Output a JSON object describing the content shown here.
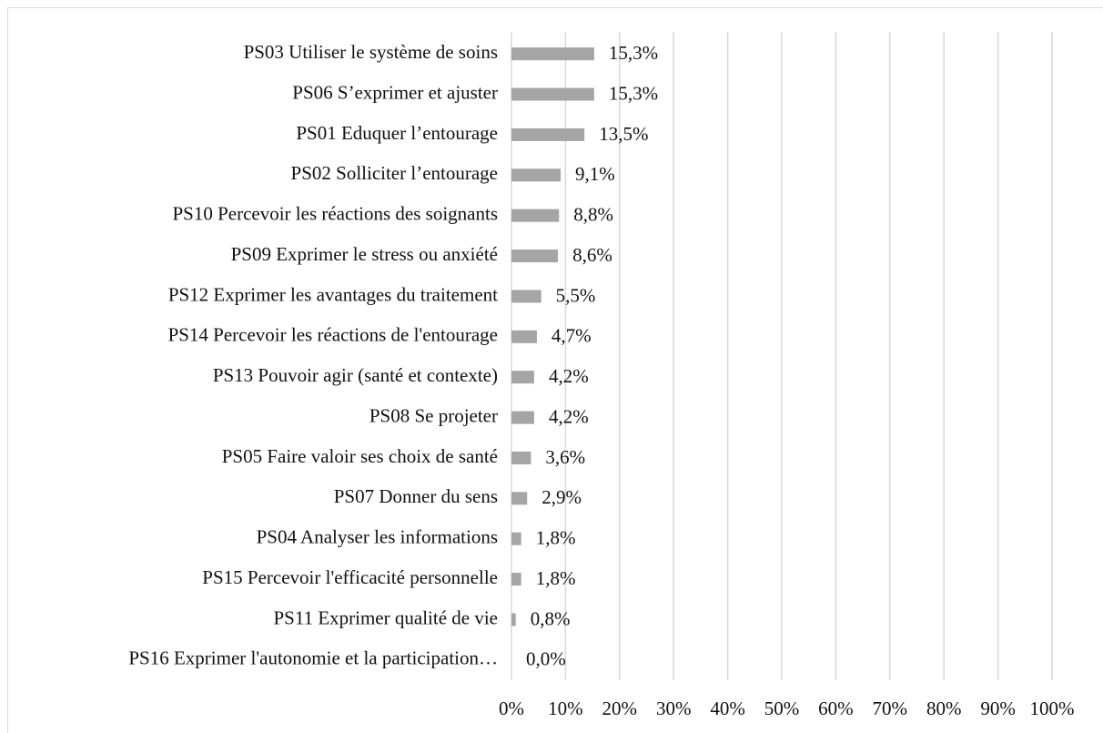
{
  "chart_data": {
    "type": "bar",
    "orientation": "horizontal",
    "categories": [
      "PS03 Utiliser le système de soins",
      "PS06 S’exprimer et ajuster",
      "PS01 Eduquer l’entourage",
      "PS02 Solliciter l’entourage",
      "PS10 Percevoir les réactions des soignants",
      "PS09 Exprimer le stress ou anxiété",
      "PS12 Exprimer les avantages du traitement",
      "PS14 Percevoir les réactions de l'entourage",
      "PS13 Pouvoir agir (santé et contexte)",
      "PS08 Se projeter",
      "PS05 Faire valoir ses choix de santé",
      "PS07 Donner du sens",
      "PS04 Analyser les informations",
      "PS15 Percevoir l'efficacité personnelle",
      "PS11 Exprimer qualité de vie",
      "PS16 Exprimer l'autonomie et la participation…"
    ],
    "values": [
      15.3,
      15.3,
      13.5,
      9.1,
      8.8,
      8.6,
      5.5,
      4.7,
      4.2,
      4.2,
      3.6,
      2.9,
      1.8,
      1.8,
      0.8,
      0.0
    ],
    "value_labels": [
      "15,3%",
      "15,3%",
      "13,5%",
      "9,1%",
      "8,8%",
      "8,6%",
      "5,5%",
      "4,7%",
      "4,2%",
      "4,2%",
      "3,6%",
      "2,9%",
      "1,8%",
      "1,8%",
      "0,8%",
      "0,0%"
    ],
    "color": "#a5a5a5",
    "xlim": [
      0,
      100
    ],
    "xticks": [
      {
        "value": 0,
        "label": "0%"
      },
      {
        "value": 10,
        "label": "10%"
      },
      {
        "value": 20,
        "label": "20%"
      },
      {
        "value": 30,
        "label": "30%"
      },
      {
        "value": 40,
        "label": "40%"
      },
      {
        "value": 50,
        "label": "50%"
      },
      {
        "value": 60,
        "label": "60%"
      },
      {
        "value": 70,
        "label": "70%"
      },
      {
        "value": 80,
        "label": "80%"
      },
      {
        "value": 90,
        "label": "90%"
      },
      {
        "value": 100,
        "label": "100%"
      }
    ],
    "grid": true
  }
}
